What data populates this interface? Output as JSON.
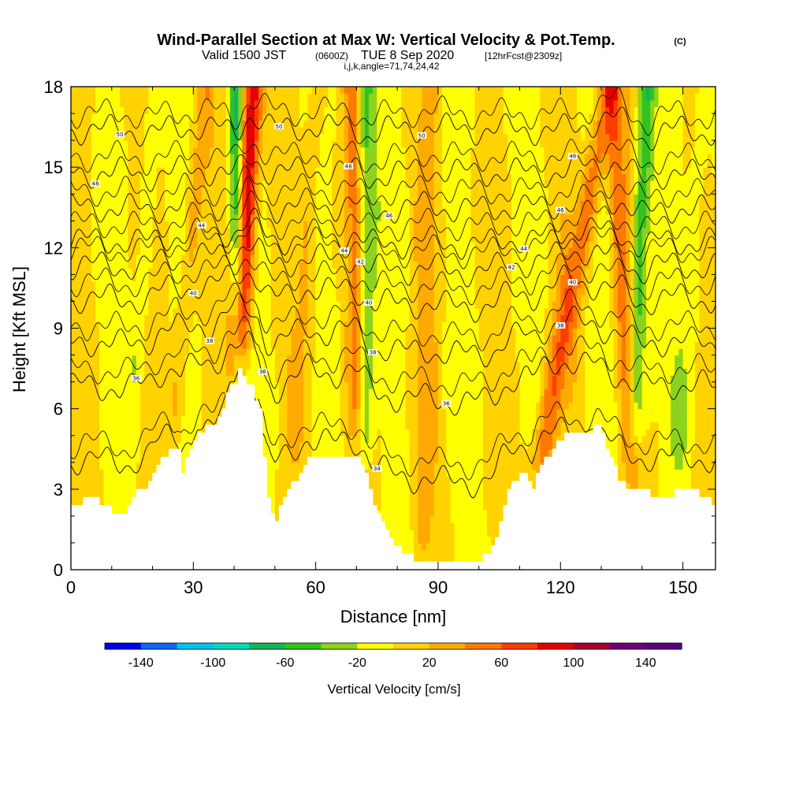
{
  "header": {
    "title": "Wind-Parallel Section at Max W: Vertical Velocity & Pot.Temp.",
    "title_mark": "(C)",
    "valid_prefix": "Valid 1500 JST",
    "valid_zulu": "(0600Z)",
    "valid_date": "TUE 8 Sep 2020",
    "valid_fcst": "[12hrFcst@2309z]",
    "indices": "i,j,k,angle=71,74,24,42"
  },
  "chart_data": {
    "type": "heatmap",
    "xlabel": "Distance [nm]",
    "ylabel": "Height [Kft MSL]",
    "xlim": [
      0,
      158
    ],
    "ylim": [
      0,
      18
    ],
    "x_ticks": [
      "0",
      "30",
      "60",
      "90",
      "120",
      "150"
    ],
    "x_tick_values": [
      0,
      30,
      60,
      90,
      120,
      150
    ],
    "y_ticks": [
      "0",
      "3",
      "6",
      "9",
      "12",
      "15",
      "18"
    ],
    "y_tick_values": [
      0,
      3,
      6,
      9,
      12,
      15,
      18
    ],
    "colorbar": {
      "label": "Vertical Velocity [cm/s]",
      "range": [
        -160,
        160
      ],
      "tick_labels": [
        "-140",
        "-100",
        "-60",
        "-20",
        "20",
        "60",
        "100",
        "140"
      ],
      "tick_values": [
        -140,
        -100,
        -60,
        -20,
        20,
        60,
        100,
        140
      ],
      "colors": [
        "#0000ee",
        "#0a64f5",
        "#00c3f0",
        "#00dcbe",
        "#14b45a",
        "#32c31e",
        "#8cd21e",
        "#ffff00",
        "#ffd200",
        "#ffaa00",
        "#ff7800",
        "#ff3c00",
        "#e60000",
        "#aa0032",
        "#6e0078",
        "#5a0080"
      ]
    },
    "terrain_kft": [
      [
        0,
        2.3
      ],
      [
        3,
        2.6
      ],
      [
        6,
        2.6
      ],
      [
        8,
        2.3
      ],
      [
        11,
        2.2
      ],
      [
        12,
        2.0
      ],
      [
        14,
        2.3
      ],
      [
        16,
        2.9
      ],
      [
        19,
        3.2
      ],
      [
        21,
        4.0
      ],
      [
        24,
        4.4
      ],
      [
        26,
        4.4
      ],
      [
        27,
        3.7
      ],
      [
        29,
        4.4
      ],
      [
        31,
        5.2
      ],
      [
        35,
        5.3
      ],
      [
        37,
        6.1
      ],
      [
        39,
        7.0
      ],
      [
        40,
        7.0
      ],
      [
        41,
        7.4
      ],
      [
        43,
        6.8
      ],
      [
        44,
        6.8
      ],
      [
        46,
        6.0
      ],
      [
        46.5,
        4.9
      ],
      [
        47,
        4.3
      ],
      [
        48,
        2.8
      ],
      [
        49,
        2.2
      ],
      [
        50,
        1.9
      ],
      [
        51,
        2.3
      ],
      [
        53,
        3.0
      ],
      [
        55,
        3.4
      ],
      [
        57,
        4.0
      ],
      [
        58,
        4.3
      ],
      [
        60,
        4.1
      ],
      [
        63,
        4.1
      ],
      [
        65,
        4.1
      ],
      [
        66,
        4.3
      ],
      [
        70,
        4.2
      ],
      [
        71,
        4.0
      ],
      [
        72,
        3.7
      ],
      [
        73,
        3.0
      ],
      [
        75,
        2.0
      ],
      [
        78,
        1.2
      ],
      [
        80,
        0.8
      ],
      [
        82,
        0.6
      ],
      [
        84,
        0.4
      ],
      [
        86,
        0.4
      ],
      [
        90,
        0.3
      ],
      [
        95,
        0.3
      ],
      [
        100,
        0.3
      ],
      [
        102,
        0.6
      ],
      [
        104,
        1.2
      ],
      [
        106,
        2.5
      ],
      [
        108,
        3.2
      ],
      [
        110,
        3.5
      ],
      [
        112,
        3.4
      ],
      [
        113,
        3.0
      ],
      [
        114,
        3.5
      ],
      [
        116,
        4.1
      ],
      [
        118,
        4.5
      ],
      [
        120,
        4.8
      ],
      [
        121,
        5.0
      ],
      [
        125,
        5.0
      ],
      [
        127,
        5.2
      ],
      [
        129,
        5.3
      ],
      [
        130,
        5.0
      ],
      [
        132,
        4.2
      ],
      [
        134,
        3.4
      ],
      [
        136,
        3.1
      ],
      [
        140,
        3.0
      ],
      [
        143,
        2.7
      ],
      [
        146,
        2.7
      ],
      [
        149,
        3.0
      ],
      [
        152,
        2.9
      ],
      [
        154,
        2.8
      ],
      [
        156,
        2.6
      ],
      [
        157,
        2.3
      ],
      [
        158,
        2.3
      ]
    ],
    "wave_bands": [
      {
        "x_bottom": 41,
        "x_top": 44.5,
        "w": 110,
        "width": 2.4,
        "z_start": 7.5
      },
      {
        "x_bottom": 41,
        "x_top": 40.5,
        "w": -70,
        "width": 1.6,
        "z_start": 7.0
      },
      {
        "x_bottom": 72,
        "x_top": 72.5,
        "w": -45,
        "width": 2.2,
        "z_start": 4.2
      },
      {
        "x_bottom": 70,
        "x_top": 69,
        "w": 40,
        "width": 2.0,
        "z_start": 5.0
      },
      {
        "x_bottom": 114,
        "x_top": 132,
        "w": 55,
        "width": 3.0,
        "z_start": 3.2
      },
      {
        "x_bottom": 138,
        "x_top": 141,
        "w": -55,
        "width": 2.0,
        "z_start": 4.5
      },
      {
        "x_bottom": 137,
        "x_top": 133,
        "w": 45,
        "width": 2.2,
        "z_start": 3.5
      },
      {
        "x_bottom": 25,
        "x_top": 33,
        "w": 25,
        "width": 2.5,
        "z_start": 5.0
      },
      {
        "x_bottom": 16,
        "x_top": 20,
        "w": -22,
        "width": 2.0,
        "z_start": 6.5
      },
      {
        "x_bottom": 56,
        "x_top": 60,
        "w": 22,
        "width": 2.5,
        "z_start": 4.5
      },
      {
        "x_bottom": 86,
        "x_top": 88,
        "w": 24,
        "width": 2.5,
        "z_start": 1.0
      },
      {
        "x_bottom": 150,
        "x_top": 155,
        "w": -20,
        "width": 2.5,
        "z_start": 4.0
      }
    ],
    "isentropes": [
      {
        "label": "34",
        "z_base": 4.3,
        "label_x": 75
      },
      {
        "label": "36",
        "z_base": 7.0,
        "label_x": 16
      },
      {
        "label": "36",
        "z_base": 7.0,
        "label_x": 47
      },
      {
        "label": "36",
        "z_base": 7.0,
        "label_x": 92
      },
      {
        "label": "38",
        "z_base": 8.6,
        "label_x": 34
      },
      {
        "label": "38",
        "z_base": 8.6,
        "label_x": 74
      },
      {
        "label": "38",
        "z_base": 8.6,
        "label_x": 120
      },
      {
        "label": "40",
        "z_base": 10.2,
        "label_x": 30
      },
      {
        "label": "40",
        "z_base": 10.2,
        "label_x": 73
      },
      {
        "label": "40",
        "z_base": 10.2,
        "label_x": 123
      },
      {
        "label": "42",
        "z_base": 11.4,
        "label_x": 71
      },
      {
        "label": "42",
        "z_base": 11.4,
        "label_x": 108
      },
      {
        "label": "44",
        "z_base": 12.3,
        "label_x": 32
      },
      {
        "label": "44",
        "z_base": 12.3,
        "label_x": 67
      },
      {
        "label": "44",
        "z_base": 12.3,
        "label_x": 111
      },
      {
        "label": "46",
        "z_base": 13.5,
        "label_x": 78
      },
      {
        "label": "46",
        "z_base": 13.5,
        "label_x": 120
      },
      {
        "label": "48",
        "z_base": 14.8,
        "label_x": 6
      },
      {
        "label": "48",
        "z_base": 14.8,
        "label_x": 68
      },
      {
        "label": "48",
        "z_base": 14.8,
        "label_x": 123
      },
      {
        "label": "50",
        "z_base": 16.4,
        "label_x": 12
      },
      {
        "label": "50",
        "z_base": 16.4,
        "label_x": 51
      },
      {
        "label": "50",
        "z_base": 16.4,
        "label_x": 86
      }
    ]
  }
}
